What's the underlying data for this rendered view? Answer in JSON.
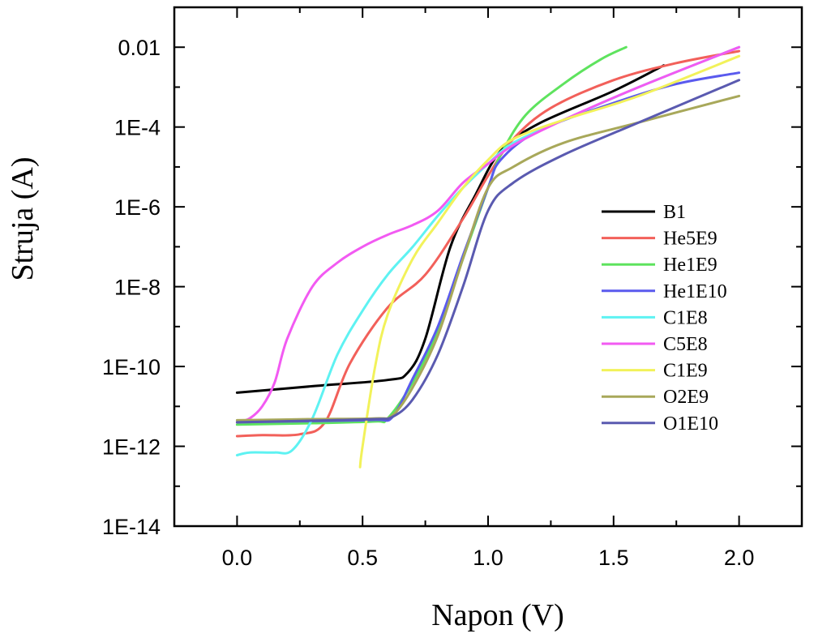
{
  "chart_data": {
    "type": "line",
    "title": "",
    "xlabel": "Napon (V)",
    "ylabel": "Struja (A)",
    "xlim": [
      -0.25,
      2.25
    ],
    "ylim": [
      1e-14,
      0.1
    ],
    "yscale": "log",
    "grid": false,
    "legend_position": "right",
    "x_ticks": [
      "0.0",
      "0.5",
      "1.0",
      "1.5",
      "2.0"
    ],
    "y_ticks": [
      "1E-14",
      "1E-12",
      "1E-10",
      "1E-8",
      "1E-6",
      "1E-4",
      "0.01"
    ],
    "series": [
      {
        "name": "B1",
        "color": "#000000",
        "x": [
          0.0,
          0.3,
          0.6,
          0.68,
          0.75,
          0.85,
          0.95,
          1.05,
          1.2,
          1.5,
          1.7
        ],
        "y": [
          2.2e-11,
          3.2e-11,
          4.6e-11,
          7e-11,
          5e-10,
          1e-07,
          2e-06,
          2.5e-05,
          0.00012,
          0.0008,
          0.0035
        ]
      },
      {
        "name": "He5E9",
        "color": "#f2605a",
        "x": [
          0.0,
          0.1,
          0.25,
          0.35,
          0.45,
          0.6,
          0.75,
          0.9,
          1.0,
          1.1,
          1.25,
          1.5,
          1.75,
          2.0
        ],
        "y": [
          1.8e-12,
          1.9e-12,
          2e-12,
          4e-12,
          1.2e-10,
          3e-09,
          2e-08,
          5e-07,
          6e-06,
          5e-05,
          0.0003,
          0.0015,
          0.004,
          0.008
        ]
      },
      {
        "name": "He1E9",
        "color": "#5ee35e",
        "x": [
          0.0,
          0.3,
          0.55,
          0.6,
          0.7,
          0.8,
          0.9,
          1.0,
          1.05,
          1.15,
          1.3,
          1.45,
          1.55
        ],
        "y": [
          3.5e-12,
          3.8e-12,
          4.2e-12,
          5e-12,
          4e-11,
          8e-10,
          5e-08,
          3e-06,
          2e-05,
          0.0002,
          0.0012,
          0.005,
          0.01
        ]
      },
      {
        "name": "He1E10",
        "color": "#5a5aee",
        "x": [
          0.0,
          0.3,
          0.55,
          0.62,
          0.7,
          0.8,
          0.9,
          1.0,
          1.05,
          1.2,
          1.5,
          1.75,
          2.0
        ],
        "y": [
          4e-12,
          4.3e-12,
          4.6e-12,
          5.5e-12,
          5e-11,
          1e-09,
          6e-08,
          3e-06,
          1.5e-05,
          8e-05,
          0.0004,
          0.0012,
          0.0023
        ]
      },
      {
        "name": "C1E8",
        "color": "#5ef2f2",
        "x": [
          0.0,
          0.05,
          0.15,
          0.22,
          0.3,
          0.4,
          0.5,
          0.6,
          0.7,
          0.8,
          0.9,
          1.0,
          1.1,
          1.3,
          1.6,
          2.0
        ],
        "y": [
          6e-13,
          7e-13,
          7e-13,
          8e-13,
          5e-12,
          2e-10,
          2.5e-09,
          2e-08,
          1e-07,
          6e-07,
          3e-06,
          1.2e-05,
          4e-05,
          0.00015,
          0.001,
          0.01
        ]
      },
      {
        "name": "C5E8",
        "color": "#f25af2",
        "x": [
          0.0,
          0.05,
          0.1,
          0.15,
          0.2,
          0.3,
          0.4,
          0.5,
          0.6,
          0.7,
          0.8,
          0.9,
          1.0,
          1.1,
          1.3,
          1.6,
          2.0
        ],
        "y": [
          4e-12,
          5e-12,
          1e-11,
          4e-11,
          5e-10,
          1e-08,
          4e-08,
          1e-07,
          2e-07,
          3.5e-07,
          8e-07,
          4e-06,
          1.2e-05,
          3.5e-05,
          0.00015,
          0.001,
          0.01
        ]
      },
      {
        "name": "C1E9",
        "color": "#f2f25a",
        "x": [
          0.49,
          0.5,
          0.55,
          0.6,
          0.7,
          0.8,
          0.9,
          1.0,
          1.1,
          1.3,
          1.6,
          2.0
        ],
        "y": [
          3e-13,
          1e-12,
          1e-10,
          2e-09,
          5e-08,
          4e-07,
          3e-06,
          1.5e-05,
          5e-05,
          0.00015,
          0.0006,
          0.006
        ]
      },
      {
        "name": "O2E9",
        "color": "#a8a85a",
        "x": [
          0.0,
          0.3,
          0.55,
          0.62,
          0.7,
          0.8,
          0.9,
          1.0,
          1.1,
          1.3,
          1.6,
          2.0
        ],
        "y": [
          4.5e-12,
          4.8e-12,
          5e-12,
          6e-12,
          3e-11,
          6e-10,
          5e-08,
          3e-06,
          1e-05,
          4e-05,
          0.00013,
          0.0006
        ]
      },
      {
        "name": "O1E10",
        "color": "#5a5ab0",
        "x": [
          0.0,
          0.3,
          0.55,
          0.62,
          0.7,
          0.8,
          0.9,
          1.0,
          1.1,
          1.3,
          1.6,
          2.0
        ],
        "y": [
          4e-12,
          4.4e-12,
          4.8e-12,
          5.5e-12,
          1.5e-11,
          2e-10,
          1e-08,
          8e-07,
          4e-06,
          2e-05,
          0.00013,
          0.0015
        ]
      }
    ]
  }
}
